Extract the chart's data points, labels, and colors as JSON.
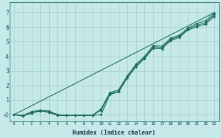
{
  "xlabel": "Humidex (Indice chaleur)",
  "bg_color": "#c5e8e8",
  "grid_color": "#aad4d4",
  "line_color": "#1a6b5a",
  "xlim": [
    -0.5,
    23.5
  ],
  "ylim": [
    -0.45,
    7.7
  ],
  "xticks": [
    0,
    1,
    2,
    3,
    4,
    5,
    6,
    7,
    8,
    9,
    10,
    11,
    12,
    13,
    14,
    15,
    16,
    17,
    18,
    19,
    20,
    21,
    22,
    23
  ],
  "yticks": [
    0,
    1,
    2,
    3,
    4,
    5,
    6,
    7
  ],
  "ytick_labels": [
    "-0",
    "1",
    "2",
    "3",
    "4",
    "5",
    "6",
    "7"
  ],
  "series": [
    {
      "x": [
        0,
        23
      ],
      "y": [
        0.0,
        7.0
      ],
      "marker": false
    },
    {
      "x": [
        0,
        1,
        2,
        3,
        4,
        5,
        6,
        7,
        8,
        9,
        10,
        11,
        12,
        13,
        14,
        15,
        16,
        17,
        18,
        19,
        20,
        21,
        22,
        23
      ],
      "y": [
        0.0,
        -0.1,
        0.1,
        0.25,
        0.15,
        -0.05,
        -0.05,
        -0.05,
        -0.05,
        -0.05,
        0.4,
        1.5,
        1.7,
        2.65,
        3.45,
        4.0,
        4.75,
        4.7,
        5.25,
        5.45,
        5.95,
        6.25,
        6.45,
        6.95
      ],
      "marker": true
    },
    {
      "x": [
        0,
        1,
        2,
        3,
        4,
        5,
        6,
        7,
        8,
        9,
        10,
        11,
        12,
        13,
        14,
        15,
        16,
        17,
        18,
        19,
        20,
        21,
        22,
        23
      ],
      "y": [
        0.0,
        -0.1,
        0.12,
        0.28,
        0.18,
        -0.05,
        -0.05,
        -0.05,
        -0.05,
        -0.05,
        0.3,
        1.42,
        1.6,
        2.58,
        3.35,
        3.92,
        4.65,
        4.62,
        5.15,
        5.38,
        5.88,
        6.12,
        6.32,
        6.85
      ],
      "marker": true
    },
    {
      "x": [
        0,
        1,
        2,
        3,
        4,
        5,
        6,
        7,
        8,
        9,
        10,
        11,
        12,
        13,
        14,
        15,
        16,
        17,
        18,
        19,
        20,
        21,
        22,
        23
      ],
      "y": [
        0.0,
        -0.05,
        0.2,
        0.3,
        0.25,
        0.0,
        -0.05,
        -0.05,
        -0.05,
        -0.05,
        0.0,
        1.38,
        1.55,
        2.5,
        3.28,
        3.85,
        4.55,
        4.52,
        5.08,
        5.3,
        5.82,
        6.02,
        6.22,
        6.75
      ],
      "marker": true
    }
  ]
}
